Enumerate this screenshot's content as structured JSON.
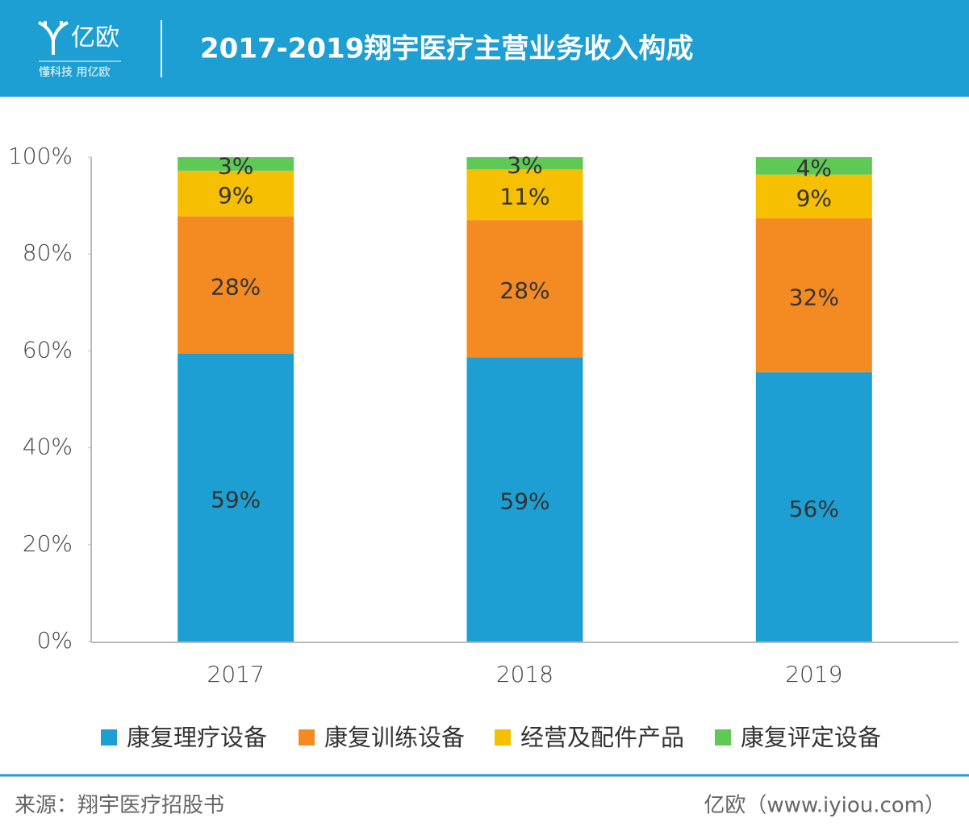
{
  "header": {
    "logo": "亿欧",
    "slogan": "懂科技 用亿欧"
  },
  "chart_data": {
    "type": "stacked_bar",
    "title": "2017-2019翔宇医疗主营业务收入构成",
    "categories": [
      "2017",
      "2018",
      "2019"
    ],
    "series": [
      {
        "name": "康复理疗设备",
        "color": "#1e9fd4",
        "values": [
          59.4,
          58.7,
          55.6
        ],
        "value_labels": [
          "59%",
          "59%",
          "56%"
        ]
      },
      {
        "name": "康复训练设备",
        "color": "#f48b22",
        "values": [
          28.4,
          28.3,
          31.8
        ],
        "value_labels": [
          "28%",
          "28%",
          "32%"
        ]
      },
      {
        "name": "经营及配件产品",
        "color": "#f6bf00",
        "values": [
          9.4,
          10.5,
          9.0
        ],
        "value_labels": [
          "9%",
          "11%",
          "9%"
        ]
      },
      {
        "name": "康复评定设备",
        "color": "#5ec955",
        "values": [
          2.8,
          2.5,
          3.6
        ],
        "value_labels": [
          "3%",
          "3%",
          "4%"
        ]
      }
    ],
    "ylim": [
      0,
      100
    ],
    "yticks": [
      {
        "value": 0,
        "label": "0%"
      },
      {
        "value": 20,
        "label": "20%"
      },
      {
        "value": 40,
        "label": "40%"
      },
      {
        "value": 60,
        "label": "60%"
      },
      {
        "value": 80,
        "label": "80%"
      },
      {
        "value": 100,
        "label": "100%"
      }
    ],
    "legend": "bottom"
  },
  "footer": {
    "source": "来源：翔宇医疗招股书",
    "site": "亿欧（www.iyiou.com）"
  }
}
